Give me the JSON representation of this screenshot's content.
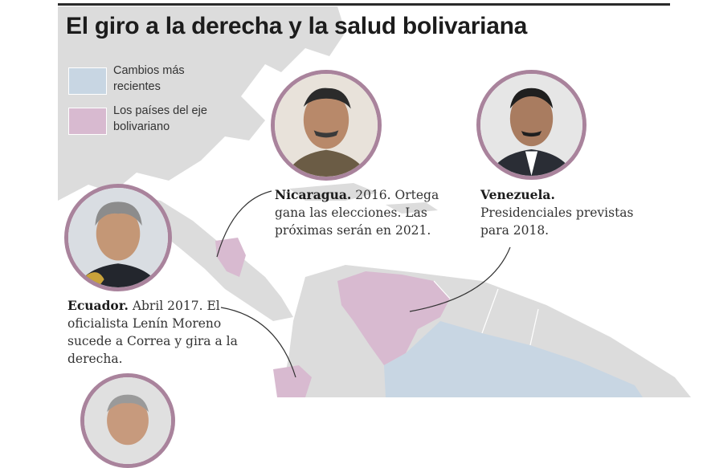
{
  "title": "El giro a la derecha y la salud bolivariana",
  "colors": {
    "recent_changes": "#c8d6e3",
    "bolivarian_axis": "#d8bad0",
    "land": "#dcdcdc",
    "sea": "#ffffff",
    "portrait_ring": "#a9839c"
  },
  "legend": [
    {
      "label_line1": "Cambios más",
      "label_line2": "recientes"
    },
    {
      "label_line1": "Los países del eje",
      "label_line2": "bolivariano"
    }
  ],
  "captions": {
    "nicaragua": {
      "country": "Nicaragua.",
      "line1": " 2016. Ortega",
      "line2": "gana las elecciones. Las",
      "line3": "próximas serán en 2021."
    },
    "venezuela": {
      "country": "Venezuela.",
      "line2": "Presidenciales previstas",
      "line3": "para 2018."
    },
    "ecuador": {
      "country": "Ecuador.",
      "line1": " Abril 2017. El",
      "line2": "oficialista Lenín Moreno",
      "line3": "sucede a Correa y gira a la",
      "line4": "derecha."
    }
  },
  "portraits": [
    "ortega",
    "maduro",
    "moreno",
    "unnamed-bottom"
  ]
}
